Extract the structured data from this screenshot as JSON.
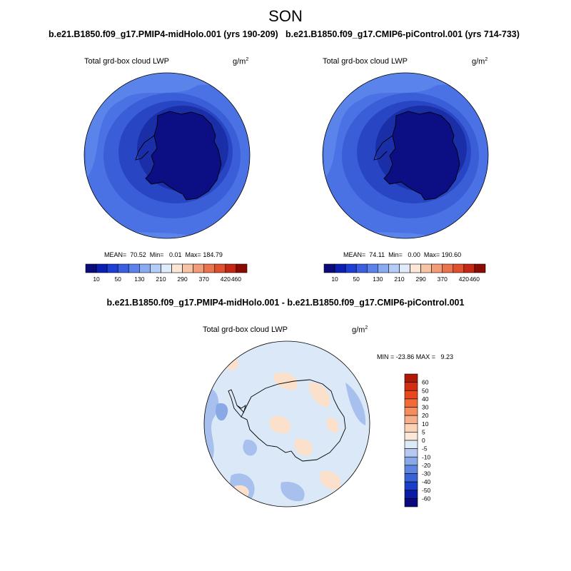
{
  "season": "SON",
  "panels": [
    {
      "case": "b.e21.B1850.f09_g17.PMIP4-midHolo.001 (yrs 190-209)",
      "variable": "Total grd-box cloud LWP",
      "units": "g/m",
      "units_exp": "2",
      "stats": "MEAN=  70.52  Min=   0.01  Max= 184.79"
    },
    {
      "case": "b.e21.B1850.f09_g17.CMIP6-piControl.001 (yrs 714-733)",
      "variable": "Total grd-box cloud LWP",
      "units": "g/m",
      "units_exp": "2",
      "stats": "MEAN=  74.11  Min=   0.00  Max= 190.60"
    }
  ],
  "diff": {
    "title": "b.e21.B1850.f09_g17.PMIP4-midHolo.001 - b.e21.B1850.f09_g17.CMIP6-piControl.001",
    "variable": "Total grd-box cloud LWP",
    "units": "g/m",
    "units_exp": "2",
    "stats": "MIN = -23.86 MAX =   9.23"
  },
  "colorbar_main": {
    "labels": [
      "10",
      "50",
      "130",
      "210",
      "290",
      "370",
      "420",
      "460"
    ],
    "colors": [
      "#0b0b7a",
      "#0b1fb5",
      "#1f3fd4",
      "#3a5fe0",
      "#5a82ea",
      "#8aaaf2",
      "#b4ccf8",
      "#e0ecfc",
      "#fde6d6",
      "#f8c4a6",
      "#f29c78",
      "#ea744e",
      "#e0502e",
      "#c42814",
      "#8c0a04"
    ]
  },
  "colorbar_diff": {
    "labels": [
      "60",
      "50",
      "40",
      "30",
      "20",
      "10",
      "5",
      "0",
      "-5",
      "-10",
      "-20",
      "-30",
      "-40",
      "-50",
      "-60"
    ],
    "colors": [
      "#b01808",
      "#d42e12",
      "#e8481e",
      "#f06a3a",
      "#f58c5e",
      "#f8ae88",
      "#fbd2b6",
      "#fde8d8",
      "#dceaf8",
      "#b4c8f0",
      "#8aa8e8",
      "#5e86e0",
      "#3862d6",
      "#1a3ec4",
      "#0a1ca4",
      "#0a0a7c"
    ]
  },
  "map_colors": {
    "ocean_outer": "#4a72e4",
    "ocean_light": "#5a84ea",
    "ocean_mid": "#3a5ed8",
    "ocean_dark": "#2846c4",
    "ice_edge": "#1a2ea8",
    "continent": "#0c0e84",
    "diff_bg": "#dbe8f8",
    "diff_blue": "#a8c0ee",
    "diff_blue2": "#8aa8e6",
    "diff_orange": "#fbe0cc"
  }
}
